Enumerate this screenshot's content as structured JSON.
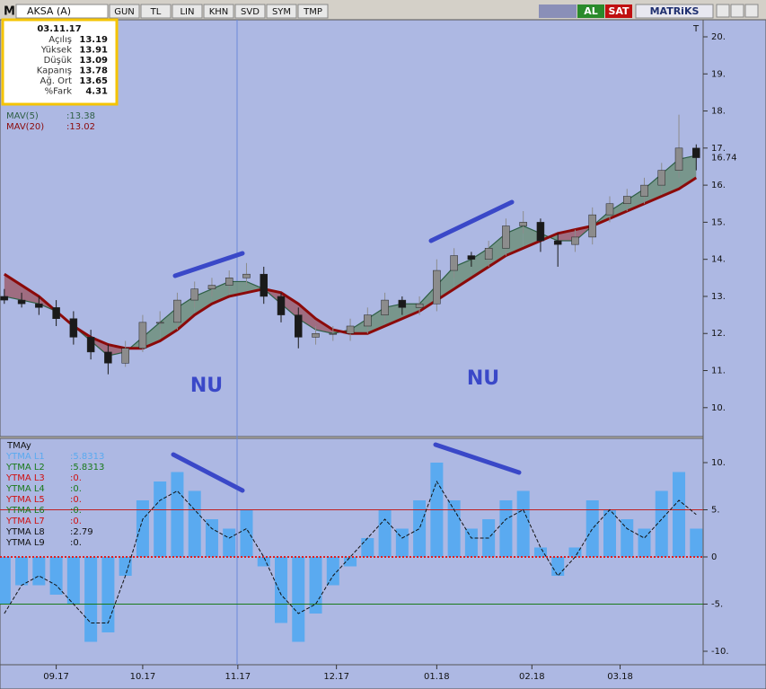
{
  "toolbar": {
    "symbol_icon": "M",
    "symbol": "AKSA (A)",
    "buttons": [
      "GUN",
      "TL",
      "LIN",
      "KHN",
      "SVD",
      "SYM",
      "TMP"
    ],
    "buy": "AL",
    "sell": "SAT",
    "brand": "MATRiKS"
  },
  "info_box": {
    "date": "03.11.17",
    "rows": [
      [
        "Açılış",
        "13.19"
      ],
      [
        "Yüksek",
        "13.91"
      ],
      [
        "Düşük",
        "13.09"
      ],
      [
        "Kapanış",
        "13.78"
      ],
      [
        "Ağ. Ort",
        "13.65"
      ],
      [
        "%Fark",
        "4.31"
      ]
    ]
  },
  "annotations": [
    "NU",
    "NU"
  ],
  "chart_data": [
    {
      "type": "candlestick",
      "axis_label": "T",
      "up_color": "#8c8c8c",
      "down_color": "#1a1a1a",
      "open": [
        13.0,
        12.9,
        12.8,
        12.7,
        12.4,
        11.9,
        11.5,
        11.2,
        11.6,
        12.3,
        12.3,
        12.9,
        13.2,
        13.3,
        13.5,
        13.6,
        13.0,
        12.5,
        11.9,
        12.0,
        12.0,
        12.2,
        12.5,
        12.9,
        12.7,
        12.8,
        13.7,
        14.1,
        14.0,
        14.3,
        14.9,
        15.0,
        14.5,
        14.4,
        14.6,
        15.2,
        15.5,
        15.7,
        16.0,
        16.4,
        17.0
      ],
      "high": [
        13.2,
        13.1,
        13.0,
        12.9,
        12.6,
        12.1,
        11.7,
        11.8,
        12.5,
        12.6,
        13.1,
        13.4,
        13.5,
        13.7,
        13.9,
        13.8,
        13.1,
        12.7,
        12.2,
        12.2,
        12.4,
        12.7,
        13.1,
        13.0,
        13.0,
        14.0,
        14.3,
        14.2,
        14.5,
        15.1,
        15.3,
        15.1,
        14.7,
        14.8,
        15.4,
        15.7,
        15.9,
        16.2,
        16.6,
        17.9,
        17.1
      ],
      "low": [
        12.8,
        12.7,
        12.5,
        12.2,
        11.7,
        11.3,
        10.9,
        11.1,
        11.5,
        12.1,
        12.1,
        12.7,
        13.0,
        13.1,
        13.3,
        12.8,
        12.3,
        11.6,
        11.7,
        11.8,
        11.8,
        12.0,
        12.3,
        12.5,
        12.5,
        12.6,
        13.5,
        13.8,
        13.8,
        14.1,
        14.7,
        14.2,
        13.8,
        14.2,
        14.4,
        15.0,
        15.3,
        15.5,
        15.8,
        16.2,
        16.4
      ],
      "close": [
        12.9,
        12.8,
        12.7,
        12.4,
        11.9,
        11.5,
        11.2,
        11.6,
        12.3,
        12.3,
        12.9,
        13.2,
        13.3,
        13.5,
        13.6,
        13.0,
        12.5,
        11.9,
        12.0,
        12.0,
        12.2,
        12.5,
        12.9,
        12.7,
        12.8,
        13.7,
        14.1,
        14.0,
        14.3,
        14.9,
        15.0,
        14.5,
        14.4,
        14.6,
        15.2,
        15.5,
        15.7,
        16.0,
        16.4,
        17.0,
        16.74
      ],
      "series": [
        {
          "name": "MAV(5)",
          "legend_value": ":13.38",
          "color": "#2f5f45",
          "values": [
            13.0,
            12.9,
            12.8,
            12.6,
            12.2,
            11.8,
            11.4,
            11.5,
            11.9,
            12.3,
            12.7,
            13.0,
            13.2,
            13.4,
            13.4,
            13.2,
            12.8,
            12.4,
            12.1,
            12.0,
            12.1,
            12.4,
            12.7,
            12.8,
            12.8,
            13.3,
            13.8,
            14.0,
            14.3,
            14.7,
            14.9,
            14.7,
            14.5,
            14.5,
            14.9,
            15.3,
            15.6,
            15.9,
            16.3,
            16.7,
            16.8
          ]
        },
        {
          "name": "MAV(20)",
          "legend_value": ":13.02",
          "color": "#8b0a0a",
          "values": [
            13.6,
            13.3,
            13.0,
            12.6,
            12.2,
            11.9,
            11.7,
            11.6,
            11.6,
            11.8,
            12.1,
            12.5,
            12.8,
            13.0,
            13.1,
            13.2,
            13.1,
            12.8,
            12.4,
            12.1,
            12.0,
            12.0,
            12.2,
            12.4,
            12.6,
            12.9,
            13.2,
            13.5,
            13.8,
            14.1,
            14.3,
            14.5,
            14.7,
            14.8,
            14.9,
            15.1,
            15.3,
            15.5,
            15.7,
            15.9,
            16.2
          ]
        }
      ],
      "fill_up_color": "#6e8f7c",
      "fill_down_color": "#9c5f70",
      "xlim": [
        -0.25,
        40.4
      ],
      "ylim": [
        9.22,
        20.46
      ],
      "yticks": [
        {
          "value": 10,
          "label": "10."
        },
        {
          "value": 11,
          "label": "11."
        },
        {
          "value": 12,
          "label": "12."
        },
        {
          "value": 13,
          "label": "13."
        },
        {
          "value": 14,
          "label": "14."
        },
        {
          "value": 15,
          "label": "15."
        },
        {
          "value": 16,
          "label": "16."
        },
        {
          "value": 17,
          "label": "17."
        },
        {
          "value": 18,
          "label": "18."
        },
        {
          "value": 19,
          "label": "19."
        },
        {
          "value": 20,
          "label": "20."
        }
      ],
      "xticks": [
        {
          "value": 3,
          "label": "09.17"
        },
        {
          "value": 8,
          "label": "10.17"
        },
        {
          "value": 13.5,
          "label": "11.17"
        },
        {
          "value": 19.2,
          "label": "12.17"
        },
        {
          "value": 25,
          "label": "01.18"
        },
        {
          "value": 30.5,
          "label": "02.18"
        },
        {
          "value": 35.6,
          "label": "03.18"
        }
      ]
    },
    {
      "type": "bar",
      "title": "TMAy",
      "color": "#5aaaf0",
      "values": [
        -5,
        -3,
        -3,
        -4,
        -5,
        -9,
        -8,
        -2,
        6,
        8,
        9,
        7,
        4,
        3,
        5,
        -1,
        -7,
        -9,
        -6,
        -3,
        -1,
        2,
        5,
        3,
        6,
        10,
        6,
        3,
        4,
        6,
        7,
        1,
        -2,
        1,
        6,
        5,
        4,
        3,
        7,
        9,
        3
      ],
      "series": [
        {
          "name": "YTMA L8",
          "color": "#111111",
          "values": [
            -6,
            -3,
            -2,
            -3,
            -5,
            -7,
            -7,
            -2,
            4,
            6,
            7,
            5,
            3,
            2,
            3,
            0,
            -4,
            -6,
            -5,
            -2,
            0,
            2,
            4,
            2,
            3,
            8,
            5,
            2,
            2,
            4,
            5,
            1,
            -2,
            0,
            3,
            5,
            3,
            2,
            4,
            6,
            4.5
          ]
        }
      ],
      "legend": [
        {
          "name": "YTMA L1",
          "label": ":5.8313",
          "color": "#5aaaf0"
        },
        {
          "name": "YTMA L2",
          "label": ":5.8313",
          "color": "#1a7a1a"
        },
        {
          "name": "YTMA L3",
          "label": ":0.",
          "color": "#d01010"
        },
        {
          "name": "YTMA L4",
          "label": ":0.",
          "color": "#1a7a1a"
        },
        {
          "name": "YTMA L5",
          "label": ":0.",
          "color": "#d01010"
        },
        {
          "name": "YTMA L6",
          "label": ":0.",
          "color": "#1a7a1a"
        },
        {
          "name": "YTMA L7",
          "label": ":0.",
          "color": "#d01010"
        },
        {
          "name": "YTMA L8",
          "label": ":2.79",
          "color": "#111111"
        },
        {
          "name": "YTMA L9",
          "label": ":0.",
          "color": "#111111"
        }
      ],
      "hlines": [
        {
          "value": 5,
          "color": "#c02020"
        },
        {
          "value": 0,
          "color": "#e02020"
        },
        {
          "value": -5,
          "color": "#1a7a1a"
        }
      ],
      "xlim": [
        -0.25,
        40.4
      ],
      "ylim": [
        -11.43,
        12.57
      ],
      "yticks": [
        {
          "value": 10,
          "label": "10."
        },
        {
          "value": 5,
          "label": "5."
        },
        0,
        {
          "value": -5,
          "label": "-5."
        },
        {
          "value": -10,
          "label": "-10."
        }
      ]
    }
  ]
}
